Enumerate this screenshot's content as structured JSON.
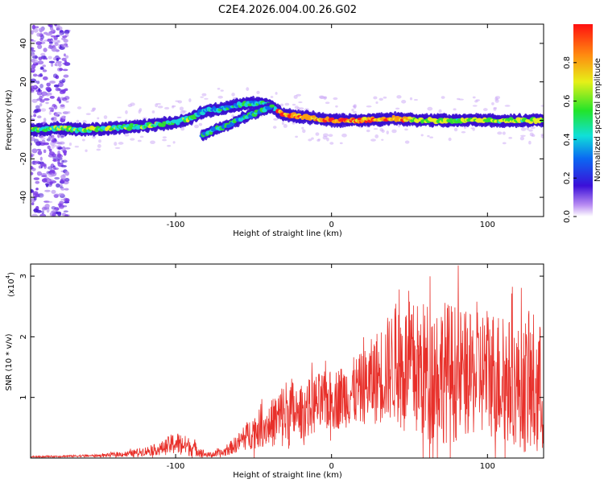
{
  "title": "C2E4.2026.004.00.26.G02",
  "chart_data": [
    {
      "type": "heatmap",
      "name": "spectrogram",
      "xlabel": "Height of straight line (km)",
      "ylabel": "Frequency (Hz)",
      "xlim": [
        -193,
        136
      ],
      "ylim": [
        -50,
        50
      ],
      "xticks": [
        -100,
        0,
        100
      ],
      "xtick_labels": [
        "-100",
        "0",
        "100"
      ],
      "yticks": [
        -40,
        -20,
        0,
        20,
        40
      ],
      "ytick_labels": [
        "-40",
        "-20",
        "0",
        "20",
        "40"
      ],
      "main_trace": {
        "x": [
          -193,
          -175,
          -160,
          -140,
          -120,
          -100,
          -90,
          -84,
          -80,
          -70,
          -60,
          -50,
          -40,
          -35,
          -30,
          -20,
          -10,
          0,
          20,
          40,
          60,
          80,
          100,
          120,
          136
        ],
        "frequency": [
          -5,
          -4,
          -5,
          -4,
          -3,
          -1,
          1,
          4,
          5,
          6,
          8,
          9,
          8,
          5,
          3,
          2,
          1,
          0,
          0,
          1,
          0,
          0,
          0,
          0,
          0
        ]
      },
      "secondary_trace": {
        "x": [
          -83,
          -75,
          -65,
          -55,
          -45,
          -38
        ],
        "frequency": [
          -8,
          -5,
          -2,
          2,
          5,
          7
        ]
      },
      "noise_region_x": [
        -193,
        -175
      ]
    },
    {
      "type": "colorbar",
      "label": "Normalized spectral amplitude",
      "range": [
        0,
        1
      ],
      "ticks": [
        0.0,
        0.2,
        0.4,
        0.6,
        0.8
      ],
      "tick_labels": [
        "0.0",
        "0.2",
        "0.4",
        "0.6",
        "0.8"
      ]
    },
    {
      "type": "line",
      "name": "snr",
      "xlabel": "Height of straight line (km)",
      "ylabel": "SNR (10 * v/v)",
      "scale_label": "(x10",
      "scale_exponent": "4",
      "scale_suffix": ")",
      "color": "#e8302a",
      "xlim": [
        -193,
        136
      ],
      "ylim": [
        0,
        3.2
      ],
      "xticks": [
        -100,
        0,
        100
      ],
      "xtick_labels": [
        "-100",
        "0",
        "100"
      ],
      "yticks": [
        1,
        2,
        3
      ],
      "ytick_labels": [
        "1",
        "2",
        "3"
      ],
      "envelope": {
        "x": [
          -193,
          -150,
          -130,
          -110,
          -100,
          -90,
          -80,
          -70,
          -60,
          -50,
          -40,
          -30,
          -25,
          -21,
          -20,
          -10,
          0,
          10,
          20,
          30,
          40,
          50,
          60,
          70,
          80,
          90,
          100,
          110,
          120,
          130,
          136
        ],
        "mean": [
          0.02,
          0.04,
          0.07,
          0.15,
          0.25,
          0.18,
          0.05,
          0.08,
          0.25,
          0.45,
          0.55,
          0.72,
          0.75,
          0.7,
          0.75,
          0.9,
          0.95,
          1.05,
          1.15,
          1.35,
          1.55,
          1.5,
          1.4,
          1.45,
          1.4,
          1.35,
          1.45,
          1.3,
          1.2,
          1.15,
          1.1
        ],
        "spread": [
          0.01,
          0.02,
          0.05,
          0.1,
          0.2,
          0.15,
          0.04,
          0.07,
          0.15,
          0.3,
          0.35,
          0.6,
          0.6,
          0.2,
          0.45,
          0.5,
          0.5,
          0.55,
          0.6,
          0.8,
          0.95,
          1.1,
          1.2,
          1.2,
          1.15,
          1.0,
          1.1,
          1.1,
          1.0,
          1.3,
          1.0
        ]
      },
      "samples_per_km": 4.7
    }
  ]
}
